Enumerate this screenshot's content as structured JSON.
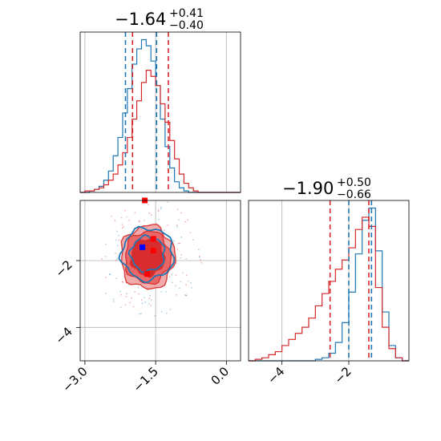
{
  "chart_data": [
    {
      "type": "step-histogram",
      "panel": "top-left marginal",
      "title": {
        "value": "−1.64",
        "upper": "+0.41",
        "lower": "−0.40"
      },
      "xlim": [
        -3.1,
        0.3
      ],
      "grid": true,
      "series": [
        {
          "name": "",
          "color": "#1f77b4",
          "bins_x": [
            -3.1,
            -3.0,
            -2.9,
            -2.8,
            -2.7,
            -2.6,
            -2.5,
            -2.4,
            -2.3,
            -2.2,
            -2.1,
            -2.0,
            -1.9,
            -1.8,
            -1.7,
            -1.6,
            -1.5,
            -1.4,
            -1.3,
            -1.2,
            -1.1,
            -1.0,
            -0.9,
            -0.8,
            -0.7,
            -0.6,
            -0.5,
            -0.4,
            -0.3,
            -0.2,
            -0.1,
            0.0,
            0.1,
            0.2
          ],
          "values": [
            0,
            0.0,
            0.01,
            0.02,
            0.04,
            0.08,
            0.14,
            0.24,
            0.36,
            0.52,
            0.68,
            0.84,
            0.94,
            1.0,
            0.96,
            0.86,
            0.7,
            0.48,
            0.3,
            0.16,
            0.07,
            0.03,
            0.01,
            0,
            0,
            0,
            0,
            0,
            0,
            0,
            0,
            0,
            0,
            0
          ]
        },
        {
          "name": "",
          "color": "#d62728",
          "bins_x": [
            -3.1,
            -3.0,
            -2.9,
            -2.8,
            -2.7,
            -2.6,
            -2.5,
            -2.4,
            -2.3,
            -2.2,
            -2.1,
            -2.0,
            -1.9,
            -1.8,
            -1.7,
            -1.6,
            -1.5,
            -1.4,
            -1.3,
            -1.2,
            -1.1,
            -1.0,
            -0.9,
            -0.8,
            -0.7,
            -0.6,
            -0.5,
            -0.4,
            -0.3,
            -0.2,
            -0.1,
            0.0,
            0.1,
            0.2
          ],
          "values": [
            0,
            0.01,
            0.01,
            0.02,
            0.03,
            0.05,
            0.08,
            0.12,
            0.18,
            0.26,
            0.36,
            0.48,
            0.6,
            0.72,
            0.8,
            0.76,
            0.7,
            0.58,
            0.46,
            0.34,
            0.22,
            0.12,
            0.06,
            0.03,
            0.01,
            0,
            0,
            0,
            0,
            0,
            0,
            0,
            0,
            0
          ]
        }
      ],
      "quantile_lines": [
        {
          "color": "#1f77b4",
          "x": [
            -2.14,
            -1.48
          ]
        },
        {
          "color": "#d62728",
          "x": [
            -1.99,
            -1.23
          ]
        }
      ]
    },
    {
      "type": "step-histogram",
      "panel": "bottom-right marginal",
      "title": {
        "value": "−1.90",
        "upper": "+0.50",
        "lower": "−0.66"
      },
      "xlim": [
        -5.0,
        -0.2
      ],
      "xticks": [
        -4,
        -2
      ],
      "xtick_labels": [
        "−4",
        "−2"
      ],
      "grid": true,
      "series": [
        {
          "name": "",
          "color": "#1f77b4",
          "bins_x": [
            -5.0,
            -4.8,
            -4.6,
            -4.4,
            -4.2,
            -4.0,
            -3.8,
            -3.6,
            -3.4,
            -3.2,
            -3.0,
            -2.8,
            -2.6,
            -2.4,
            -2.2,
            -2.0,
            -1.8,
            -1.6,
            -1.4,
            -1.2,
            -1.0,
            -0.8,
            -0.6,
            -0.4
          ],
          "values": [
            0,
            0,
            0,
            0,
            0,
            0,
            0,
            0,
            0,
            0,
            0.01,
            0.02,
            0.05,
            0.12,
            0.25,
            0.45,
            0.7,
            0.92,
            1.0,
            0.72,
            0.32,
            0.1,
            0.02,
            0
          ]
        },
        {
          "name": "",
          "color": "#d62728",
          "bins_x": [
            -5.0,
            -4.8,
            -4.6,
            -4.4,
            -4.2,
            -4.0,
            -3.8,
            -3.6,
            -3.4,
            -3.2,
            -3.0,
            -2.8,
            -2.6,
            -2.4,
            -2.2,
            -2.0,
            -1.8,
            -1.6,
            -1.4,
            -1.2,
            -1.0,
            -0.8,
            -0.6,
            -0.4
          ],
          "values": [
            0,
            0.01,
            0.02,
            0.04,
            0.06,
            0.1,
            0.14,
            0.18,
            0.22,
            0.28,
            0.36,
            0.44,
            0.52,
            0.6,
            0.66,
            0.74,
            0.86,
            0.94,
            0.88,
            0.48,
            0.22,
            0.08,
            0.02,
            0
          ]
        }
      ],
      "quantile_lines": [
        {
          "color": "#1f77b4",
          "x": [
            -2.0,
            -1.32
          ]
        },
        {
          "color": "#d62728",
          "x": [
            -2.56,
            -1.4
          ]
        }
      ]
    },
    {
      "type": "2d-contour",
      "panel": "bottom-left joint",
      "xlim": [
        -3.1,
        0.3
      ],
      "ylim": [
        -5.0,
        -0.2
      ],
      "xticks": [
        -3.0,
        -1.5,
        0.0
      ],
      "xtick_labels": [
        "−3.0",
        "−1.5",
        "0.0"
      ],
      "yticks": [
        -2,
        -4
      ],
      "ytick_labels": [
        "−2",
        "−4"
      ],
      "grid": true,
      "reference_point": {
        "x": -1.5,
        "y": -2.0
      },
      "markers": [
        {
          "color": "#0000ff",
          "x": -1.78,
          "y": -1.6
        },
        {
          "color": "#ff0000",
          "x": -1.73,
          "y": -0.2
        },
        {
          "color": "#ff0000",
          "x": -1.55,
          "y": -1.35
        },
        {
          "color": "#ff0000",
          "x": -1.55,
          "y": -1.7
        },
        {
          "color": "#ff0000",
          "x": -1.68,
          "y": -2.4
        }
      ],
      "contours": [
        {
          "name": "",
          "color": "#d62728",
          "filled": true,
          "center": [
            -1.67,
            -1.9
          ],
          "levels": [
            [
              0.57,
              0.95
            ],
            [
              0.48,
              0.78
            ],
            [
              0.35,
              0.55
            ]
          ]
        },
        {
          "name": "",
          "color": "#1f77b4",
          "filled": false,
          "center": [
            -1.67,
            -1.8
          ],
          "levels": [
            [
              0.55,
              0.78
            ],
            [
              0.36,
              0.52
            ]
          ]
        }
      ]
    }
  ]
}
